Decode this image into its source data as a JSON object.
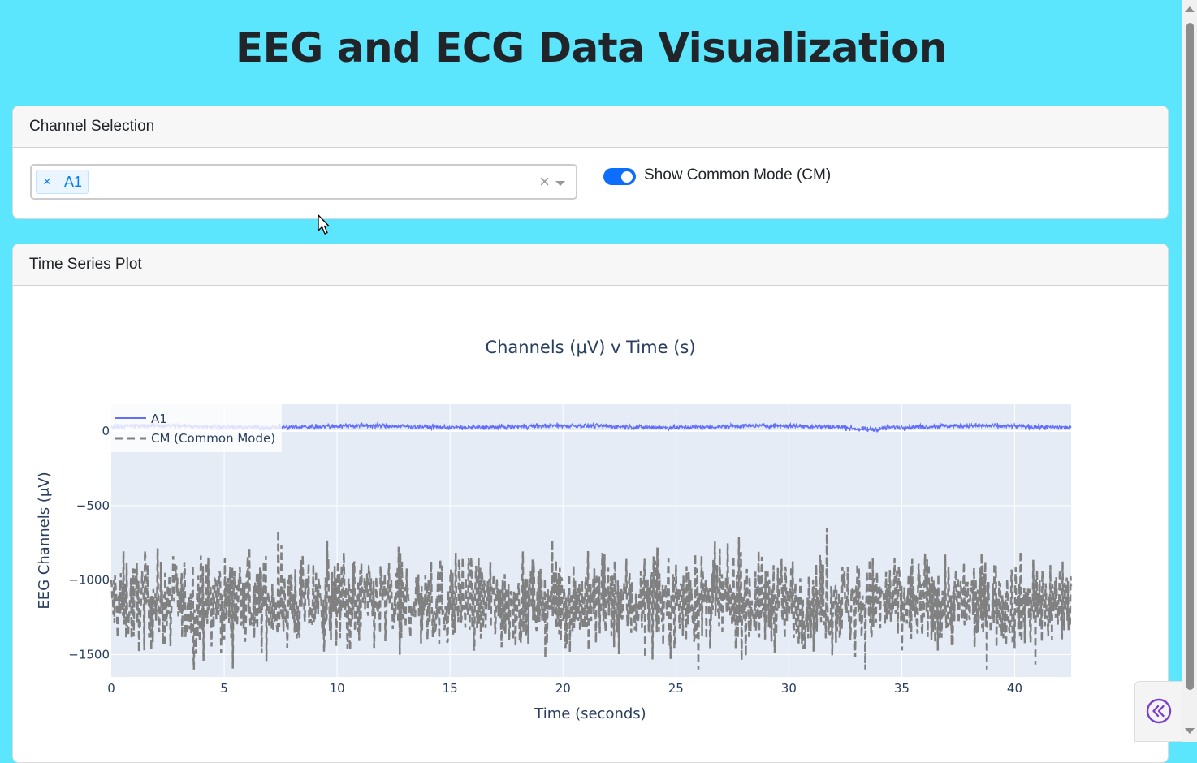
{
  "page": {
    "title": "EEG and ECG Data Visualization"
  },
  "channel_card": {
    "header": "Channel Selection",
    "selected_channels": [
      "A1"
    ],
    "chip_remove": "×",
    "clear_all": "×",
    "toggle_label": "Show Common Mode (CM)",
    "toggle_on": true
  },
  "plot_card": {
    "header": "Time Series Plot"
  },
  "colors": {
    "background": "#5ce6fd",
    "accent": "#0d6efd",
    "a1_trace": "#636efa",
    "cm_trace": "#808080",
    "plot_bg": "#e5ecf6"
  },
  "icons": {
    "corner": "double-chevron-left-icon",
    "cursor": "mouse-pointer-icon"
  },
  "chart_data": {
    "type": "line",
    "title": "Channels (μV) v Time (s)",
    "xlabel": "Time (seconds)",
    "ylabel": "EEG Channels (μV)",
    "xlim": [
      0,
      42.5
    ],
    "ylim": [
      -1650,
      180
    ],
    "xticks": [
      0,
      5,
      10,
      15,
      20,
      25,
      30,
      35,
      40
    ],
    "yticks": [
      0,
      -500,
      -1000,
      -1500
    ],
    "ytick_labels": [
      "0",
      "−500",
      "−1000",
      "−1500"
    ],
    "grid": true,
    "legend_position": "top-left",
    "series": [
      {
        "name": "A1",
        "style": "solid",
        "mean": 30,
        "spread": 12,
        "x": [
          0,
          42.5
        ]
      },
      {
        "name": "CM (Common Mode)",
        "style": "dashed",
        "mean": -1150,
        "spread": 240,
        "x": [
          0,
          42.5
        ]
      }
    ]
  }
}
